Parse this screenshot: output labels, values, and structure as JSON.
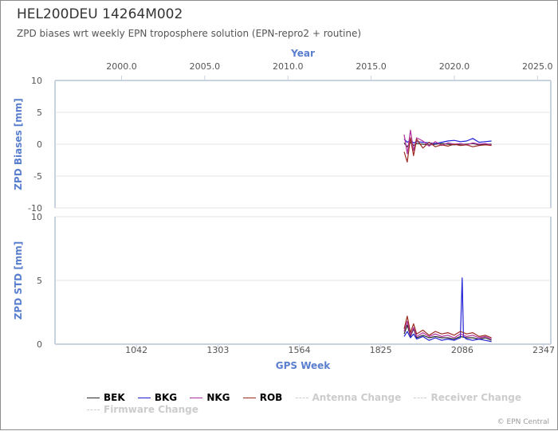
{
  "header": {
    "title": "HEL200DEU 14264M002",
    "subtitle": "ZPD biases wrt weekly EPN troposphere solution (EPN-repro2 + routine)"
  },
  "credits": "© EPN Central",
  "colors": {
    "BEK": "#2b2b2b",
    "BKG": "#1f1fd6",
    "NKG": "#b0309e",
    "ROB": "#9c2a22",
    "axis_title": "#5a7fcf"
  },
  "chart_data": [
    {
      "type": "line",
      "title": "HEL200DEU 14264M002",
      "subtitle": "ZPD biases wrt weekly EPN troposphere solution (EPN-repro2 + routine)",
      "xlabel_top": "Year",
      "ylabel": "ZPD Biases [mm]",
      "ylim": [
        -10,
        10
      ],
      "yticks": [
        10,
        5,
        0,
        -5,
        -10
      ],
      "top_xlim": [
        1996.0,
        2025.8
      ],
      "top_xticks": [
        "2000.0",
        "2005.0",
        "2010.0",
        "2015.0",
        "2020.0",
        "2025.0"
      ],
      "grid": true,
      "series": [
        {
          "name": "BEK",
          "x": [
            1900,
            1910,
            1920,
            1930,
            1940,
            1960,
            1980,
            2000,
            2020,
            2040,
            2060,
            2080,
            2100,
            2120,
            2140,
            2160,
            2180
          ],
          "values": [
            0.2,
            -0.4,
            0.3,
            -0.2,
            0.1,
            0.0,
            -0.1,
            0.0,
            0.1,
            0.0,
            -0.1,
            0.0,
            0.0,
            0.1,
            -0.1,
            0.0,
            0.0
          ]
        },
        {
          "name": "BKG",
          "x": [
            1900,
            1910,
            1920,
            1930,
            1940,
            1960,
            1980,
            2000,
            2020,
            2040,
            2060,
            2080,
            2100,
            2120,
            2140,
            2160,
            2180
          ],
          "values": [
            0.8,
            0.3,
            0.6,
            0.2,
            0.4,
            0.3,
            0.2,
            0.1,
            0.3,
            0.5,
            0.6,
            0.4,
            0.5,
            0.9,
            0.3,
            0.4,
            0.5
          ]
        },
        {
          "name": "NKG",
          "x": [
            1900,
            1910,
            1920,
            1930,
            1940,
            1960,
            1980,
            2000,
            2020,
            2040,
            2060,
            2080,
            2100,
            2120,
            2140,
            2160,
            2180
          ],
          "values": [
            1.5,
            -1.5,
            2.2,
            -1.0,
            1.0,
            0.5,
            -0.3,
            0.4,
            -0.2,
            0.2,
            0.0,
            0.1,
            -0.1,
            0.2,
            0.0,
            0.1,
            -0.1
          ]
        },
        {
          "name": "ROB",
          "x": [
            1900,
            1910,
            1920,
            1930,
            1940,
            1960,
            1980,
            2000,
            2020,
            2040,
            2060,
            2080,
            2100,
            2120,
            2140,
            2160,
            2180
          ],
          "values": [
            -1.2,
            -2.8,
            1.0,
            -1.8,
            0.8,
            -0.6,
            0.3,
            -0.4,
            -0.1,
            -0.3,
            0.0,
            -0.2,
            -0.1,
            -0.4,
            -0.2,
            -0.1,
            -0.2
          ]
        }
      ]
    },
    {
      "type": "line",
      "xlabel": "GPS Week",
      "ylabel": "ZPD STD [mm]",
      "xlim": [
        781,
        2370
      ],
      "xticks": [
        1042,
        1303,
        1564,
        1825,
        2086,
        2347
      ],
      "ylim": [
        0,
        10
      ],
      "yticks": [
        10,
        5,
        0
      ],
      "grid": true,
      "series": [
        {
          "name": "BEK",
          "x": [
            1900,
            1910,
            1920,
            1930,
            1940,
            1960,
            1980,
            2000,
            2020,
            2040,
            2060,
            2080,
            2100,
            2120,
            2140,
            2160,
            2180
          ],
          "values": [
            0.8,
            1.5,
            0.6,
            1.2,
            0.5,
            0.7,
            0.5,
            0.6,
            0.5,
            0.5,
            0.4,
            0.6,
            0.5,
            0.5,
            0.4,
            0.5,
            0.3
          ]
        },
        {
          "name": "BKG",
          "x": [
            1900,
            1910,
            1920,
            1930,
            1940,
            1960,
            1980,
            2000,
            2020,
            2040,
            2060,
            2080,
            2086,
            2090,
            2100,
            2120,
            2140,
            2160,
            2180
          ],
          "values": [
            0.6,
            1.0,
            0.5,
            0.8,
            0.4,
            0.6,
            0.3,
            0.5,
            0.3,
            0.4,
            0.3,
            0.5,
            5.2,
            0.6,
            0.4,
            0.3,
            0.4,
            0.3,
            0.2
          ]
        },
        {
          "name": "NKG",
          "x": [
            1900,
            1910,
            1920,
            1930,
            1940,
            1960,
            1980,
            2000,
            2020,
            2040,
            2060,
            2080,
            2100,
            2120,
            2140,
            2160,
            2180
          ],
          "values": [
            1.0,
            1.8,
            0.7,
            1.3,
            0.6,
            0.9,
            0.6,
            0.8,
            0.6,
            0.7,
            0.5,
            0.8,
            0.6,
            0.7,
            0.5,
            0.6,
            0.4
          ]
        },
        {
          "name": "ROB",
          "x": [
            1900,
            1910,
            1920,
            1930,
            1940,
            1960,
            1980,
            2000,
            2020,
            2040,
            2060,
            2080,
            2100,
            2120,
            2140,
            2160,
            2180
          ],
          "values": [
            1.2,
            2.2,
            0.9,
            1.6,
            0.8,
            1.1,
            0.7,
            1.0,
            0.8,
            0.9,
            0.7,
            1.0,
            0.8,
            0.9,
            0.6,
            0.7,
            0.5
          ]
        }
      ]
    }
  ],
  "legend": [
    {
      "label": "BEK",
      "enabled": true,
      "color": "#2b2b2b"
    },
    {
      "label": "BKG",
      "enabled": true,
      "color": "#1f1fd6"
    },
    {
      "label": "NKG",
      "enabled": true,
      "color": "#b0309e"
    },
    {
      "label": "ROB",
      "enabled": true,
      "color": "#9c2a22"
    },
    {
      "label": "Antenna Change",
      "enabled": false,
      "color": "#cccccc"
    },
    {
      "label": "Receiver Change",
      "enabled": false,
      "color": "#cccccc"
    },
    {
      "label": "Firmware Change",
      "enabled": false,
      "color": "#cccccc"
    }
  ]
}
